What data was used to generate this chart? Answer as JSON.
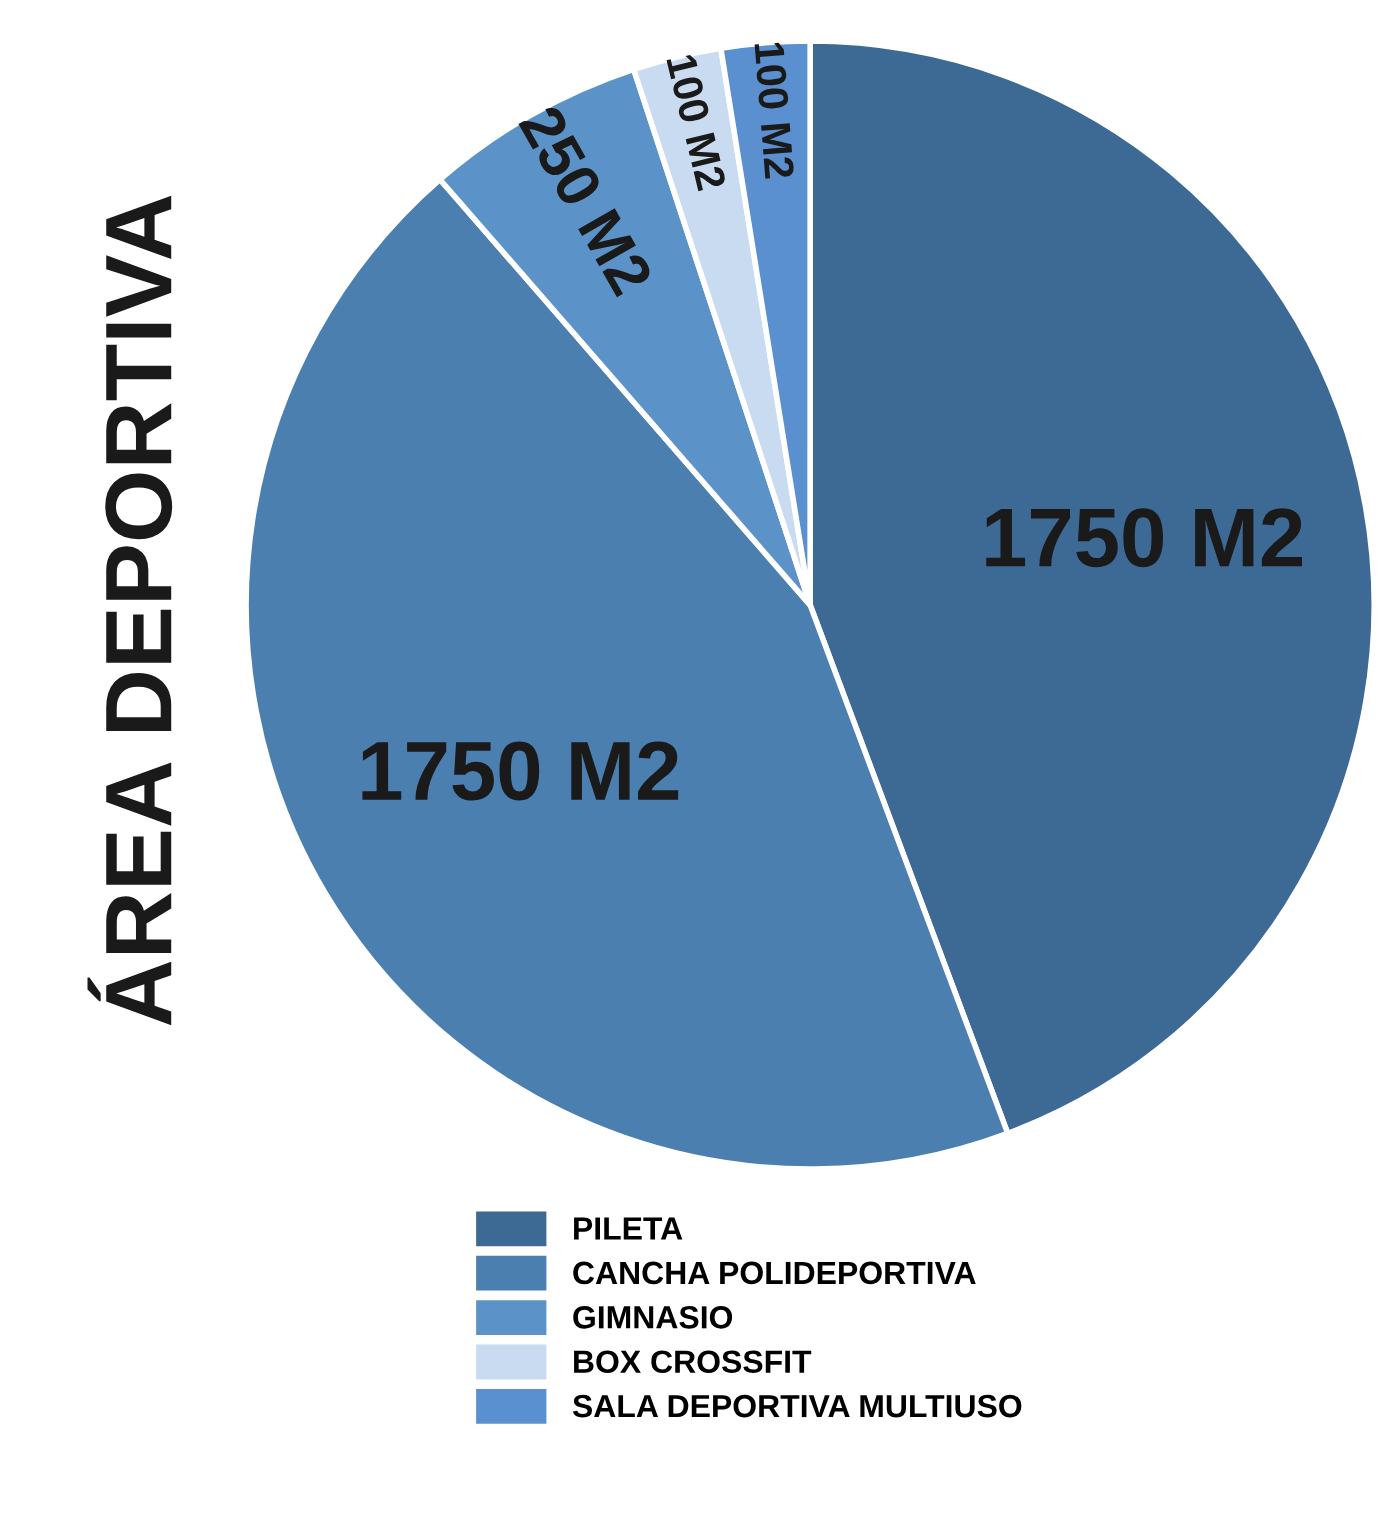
{
  "chart_data": {
    "type": "pie",
    "title": "ÁREA DEPORTIVA",
    "categories": [
      "PILETA",
      "CANCHA POLIDEPORTIVA",
      "GIMNASIO",
      "BOX CROSSFIT",
      "SALA DEPORTIVA MULTIUSO"
    ],
    "values": [
      1750,
      1750,
      250,
      100,
      100
    ],
    "value_labels": [
      "1750 M2",
      "1750 M2",
      "250 M2",
      "100 M2",
      "100 M2"
    ],
    "colors": [
      "#3d6a94",
      "#4a7fb0",
      "#5b93c9",
      "#c9dbf0",
      "#5a8fd0"
    ],
    "legend": "bottom"
  }
}
